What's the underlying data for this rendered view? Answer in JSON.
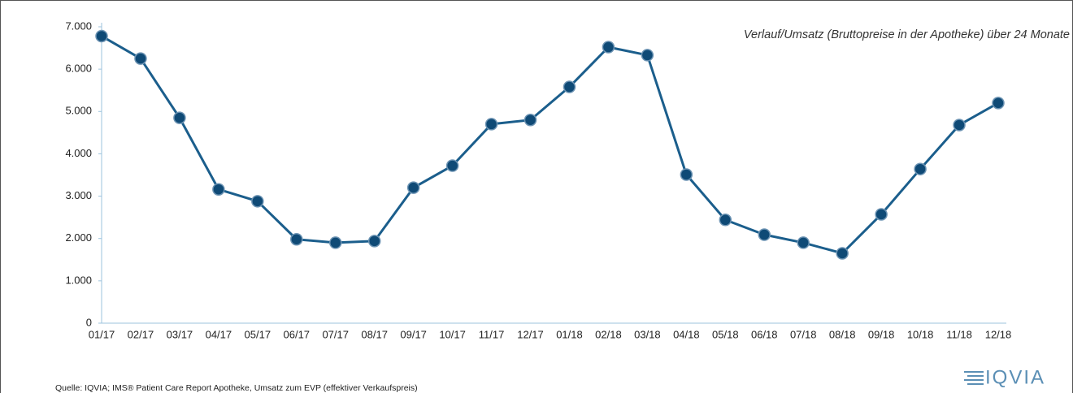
{
  "chart_data": {
    "type": "line",
    "subtitle": "Verlauf/Umsatz (Bruttopreise in der Apotheke) über 24 Monate",
    "source": "Quelle: IQVIA; IMS® Patient Care Report Apotheke, Umsatz zum EVP (effektiver Verkaufspreis)",
    "logo": "IQVIA",
    "categories": [
      "01/17",
      "02/17",
      "03/17",
      "04/17",
      "05/17",
      "06/17",
      "07/17",
      "08/17",
      "09/17",
      "10/17",
      "11/17",
      "12/17",
      "01/18",
      "02/18",
      "03/18",
      "04/18",
      "05/18",
      "06/18",
      "07/18",
      "08/18",
      "09/18",
      "10/18",
      "11/18",
      "12/18"
    ],
    "values": [
      6780,
      6250,
      4850,
      3160,
      2880,
      1980,
      1900,
      1940,
      3200,
      3720,
      4700,
      4800,
      5580,
      6520,
      6330,
      3510,
      2440,
      2090,
      1900,
      1650,
      2570,
      3640,
      4680,
      5200
    ],
    "color": "#1b5e8c",
    "ylim": [
      0,
      7000
    ],
    "yticks": [
      0,
      {
        "value": 1000,
        "label": "1.000"
      },
      {
        "value": 2000,
        "label": "2.000"
      },
      {
        "value": 3000,
        "label": "3.000"
      },
      {
        "value": 4000,
        "label": "4.000"
      },
      {
        "value": 5000,
        "label": "5.000"
      },
      {
        "value": 6000,
        "label": "6.000"
      },
      {
        "value": 7000,
        "label": "7.000"
      }
    ],
    "grid": false
  }
}
